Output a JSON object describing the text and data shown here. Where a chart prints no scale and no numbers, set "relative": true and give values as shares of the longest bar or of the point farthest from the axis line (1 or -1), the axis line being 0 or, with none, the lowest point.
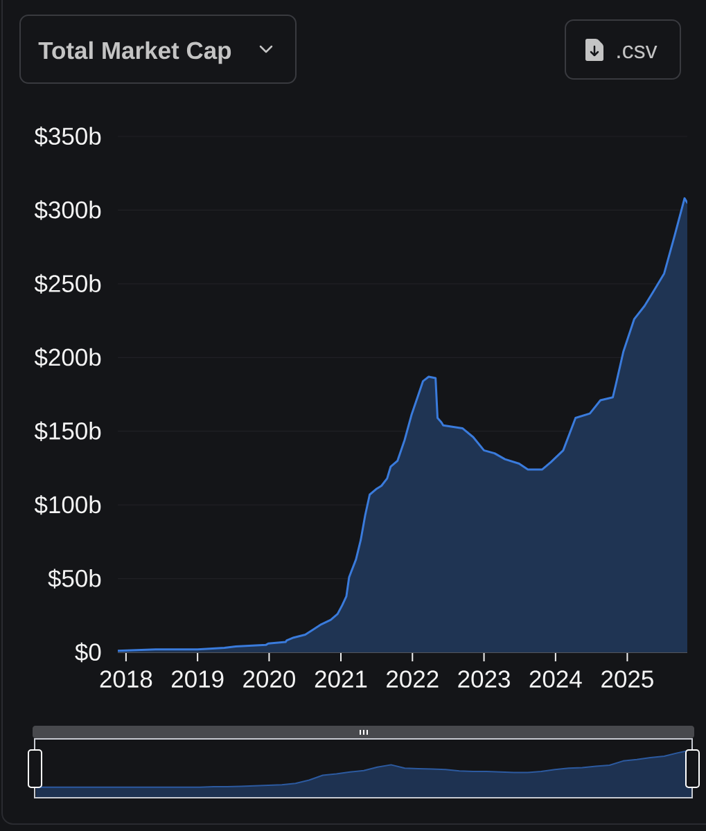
{
  "chart_data": [
    {
      "type": "area",
      "title": "Total Market Cap",
      "annotations": [
        ".csv"
      ],
      "color": "#3a7bdc",
      "grid": "y",
      "x": [
        "2017-11-20",
        "2018-06-01",
        "2019-01-01",
        "2019-05-18",
        "2019-07-15",
        "2019-12-15",
        "2019-12-28",
        "2020-03-25",
        "2020-03-30",
        "2020-05-05",
        "2020-07-03",
        "2020-08-08",
        "2020-09-23",
        "2020-11-10",
        "2020-12-15",
        "2021-01-08",
        "2021-01-29",
        "2021-02-12",
        "2021-03-19",
        "2021-04-12",
        "2021-05-05",
        "2021-05-28",
        "2021-07-03",
        "2021-07-27",
        "2021-08-25",
        "2021-09-12",
        "2021-10-17",
        "2021-11-22",
        "2021-12-27",
        "2022-02-01",
        "2022-02-24",
        "2022-03-25",
        "2022-04-29",
        "2022-05-09",
        "2022-05-29",
        "2022-06-07",
        "2022-09-13",
        "2022-11-07",
        "2023-01-01",
        "2023-02-24",
        "2023-04-18",
        "2023-06-29",
        "2023-08-13",
        "2023-10-24",
        "2023-12-08",
        "2024-02-09",
        "2024-04-12",
        "2024-06-24",
        "2024-08-17",
        "2024-10-19",
        "2024-11-06",
        "2024-12-12",
        "2025-02-05",
        "2025-03-30",
        "2025-05-15",
        "2025-07-08",
        "2025-08-31",
        "2025-10-20",
        "2025-11-03"
      ],
      "values": [
        1,
        2,
        2,
        3,
        4,
        5,
        6,
        7,
        8,
        10,
        12,
        15,
        19,
        22,
        26,
        32,
        38,
        51,
        63,
        76,
        93,
        107,
        111,
        113,
        118,
        126,
        130,
        144,
        161,
        175,
        184,
        187,
        186,
        159,
        156,
        154,
        152,
        146,
        137,
        135,
        131,
        128,
        124,
        124,
        129,
        137,
        159,
        162,
        171,
        173,
        183,
        204,
        226,
        235,
        245,
        257,
        283,
        308,
        305
      ],
      "xlim": [
        "2017-11-20",
        "2025-11-03"
      ],
      "xticks": [
        {
          "value": "2018-01-01",
          "label": "2018"
        },
        {
          "value": "2019-01-01",
          "label": "2019"
        },
        {
          "value": "2020-01-01",
          "label": "2020"
        },
        {
          "value": "2021-01-01",
          "label": "2021"
        },
        {
          "value": "2022-01-01",
          "label": "2022"
        },
        {
          "value": "2023-01-01",
          "label": "2023"
        },
        {
          "value": "2024-01-01",
          "label": "2024"
        },
        {
          "value": "2025-01-01",
          "label": "2025"
        }
      ],
      "ylim": [
        0,
        350
      ],
      "yticks": [
        {
          "value": 0,
          "label": "$0"
        },
        {
          "value": 50,
          "label": "$50b"
        },
        {
          "value": 100,
          "label": "$100b"
        },
        {
          "value": 150,
          "label": "$150b"
        },
        {
          "value": 200,
          "label": "$200b"
        },
        {
          "value": 250,
          "label": "$250b"
        },
        {
          "value": 300,
          "label": "$300b"
        },
        {
          "value": 350,
          "label": "$350b"
        }
      ]
    },
    {
      "type": "area",
      "relative": true,
      "tick_labels": false,
      "color": "#2c5aa0",
      "categories": [
        null,
        null,
        null,
        null,
        null,
        null,
        null,
        null,
        null,
        null,
        null,
        null,
        null,
        null,
        null,
        null,
        null,
        null,
        null,
        null,
        null,
        null,
        null,
        null,
        null,
        null,
        null,
        null,
        null,
        null,
        null,
        null,
        null,
        null,
        null,
        null,
        null,
        null,
        null,
        null,
        null,
        null,
        null,
        null,
        null,
        null,
        null,
        null,
        null
      ],
      "values": [
        0.22,
        0.22,
        0.22,
        0.22,
        0.22,
        0.22,
        0.22,
        0.22,
        0.22,
        0.22,
        0.22,
        0.22,
        0.22,
        0.23,
        0.23,
        0.24,
        0.25,
        0.26,
        0.27,
        0.3,
        0.37,
        0.47,
        0.5,
        0.54,
        0.57,
        0.64,
        0.69,
        0.62,
        0.61,
        0.6,
        0.59,
        0.56,
        0.55,
        0.55,
        0.54,
        0.53,
        0.53,
        0.55,
        0.59,
        0.62,
        0.63,
        0.66,
        0.68,
        0.77,
        0.8,
        0.84,
        0.87,
        0.94,
        1
      ]
    }
  ]
}
